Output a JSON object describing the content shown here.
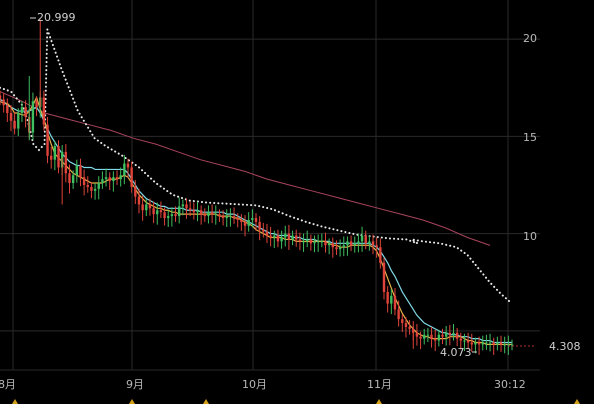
{
  "chart_data": {
    "type": "candlestick",
    "title": "",
    "xlabel": "",
    "ylabel": "",
    "ylim": [
      3.5,
      21.6
    ],
    "grid": true,
    "y_ticks": [
      10,
      15,
      20
    ],
    "y_tick_labels": [
      "10",
      "15",
      "20"
    ],
    "x_tick_labels": [
      "8月",
      "9月",
      "10月",
      "11月",
      "30:12"
    ],
    "annotations": {
      "high": "20.999",
      "low": "4.073",
      "last_price": "4.308"
    },
    "x_days": [
      0,
      1,
      2,
      3,
      4,
      5,
      6,
      7,
      8,
      9,
      10,
      11,
      12,
      13,
      14,
      15,
      16,
      17,
      18,
      19,
      20,
      21,
      22,
      23,
      24,
      25,
      26,
      27,
      28,
      29,
      30,
      31,
      32,
      33,
      34,
      35,
      36,
      37,
      38,
      39,
      40,
      41,
      42,
      43,
      44,
      45,
      46,
      47,
      48,
      49,
      50,
      51,
      52,
      53,
      54,
      55,
      56,
      57,
      58,
      59,
      60,
      61,
      62,
      63,
      64,
      65,
      66,
      67,
      68,
      69,
      70,
      71,
      72,
      73,
      74,
      75,
      76,
      77,
      78,
      79,
      80,
      81,
      82,
      83,
      84,
      85,
      86,
      87,
      88,
      89,
      90,
      91,
      92,
      93,
      94,
      95,
      96,
      97,
      98,
      99,
      100,
      101,
      102,
      103,
      104,
      105,
      106,
      107,
      108,
      109,
      110,
      111,
      112,
      113,
      114,
      115,
      116,
      117,
      118,
      119,
      120,
      121,
      122,
      123,
      124,
      125,
      126,
      127,
      128,
      129,
      130,
      131,
      132,
      133,
      134,
      135,
      136,
      137,
      138,
      139,
      140
    ],
    "close": [
      16.9,
      16.6,
      16.2,
      15.8,
      15.4,
      16.2,
      16.5,
      16.0,
      15.2,
      16.8,
      16.5,
      17.0,
      15.6,
      14.0,
      13.8,
      14.5,
      13.4,
      14.2,
      13.1,
      12.6,
      13.0,
      13.5,
      12.9,
      12.5,
      12.4,
      12.2,
      12.3,
      12.6,
      12.8,
      12.9,
      12.7,
      12.9,
      12.8,
      13.0,
      13.6,
      13.4,
      12.4,
      11.9,
      11.5,
      11.2,
      11.5,
      11.3,
      11.0,
      11.2,
      11.1,
      10.8,
      10.9,
      11.0,
      10.9,
      11.4,
      11.5,
      11.3,
      11.2,
      11.1,
      11.2,
      11.0,
      10.9,
      11.1,
      11.0,
      11.0,
      10.9,
      10.8,
      10.9,
      10.9,
      10.8,
      10.7,
      10.6,
      10.4,
      10.7,
      10.8,
      10.6,
      10.2,
      10.1,
      9.9,
      9.8,
      9.9,
      9.6,
      9.8,
      10.0,
      9.7,
      9.9,
      9.7,
      9.6,
      9.6,
      9.7,
      9.5,
      9.6,
      9.6,
      9.6,
      9.4,
      9.5,
      9.3,
      9.2,
      9.3,
      9.4,
      9.6,
      9.4,
      9.5,
      9.6,
      9.9,
      9.5,
      9.6,
      9.4,
      9.3,
      8.5,
      7.0,
      6.4,
      6.8,
      6.1,
      5.6,
      5.4,
      5.2,
      5.1,
      4.9,
      4.7,
      4.6,
      4.8,
      4.8,
      4.6,
      4.5,
      4.8,
      4.7,
      4.9,
      4.8,
      4.9,
      4.6,
      4.5,
      4.5,
      4.4,
      4.3,
      4.4,
      4.3,
      4.4,
      4.4,
      4.4,
      4.3,
      4.4,
      4.3,
      4.3,
      4.3,
      4.3
    ],
    "ma_short": [
      16.8,
      16.7,
      16.7,
      16.5,
      16.2,
      16.2,
      16.1,
      16.1,
      16.3,
      16.6,
      17.0,
      16.4,
      15.9,
      15.2,
      14.6,
      14.1,
      13.9,
      13.7,
      13.5,
      13.3,
      13.1,
      13.0,
      12.9,
      12.8,
      12.7,
      12.6,
      12.6,
      12.6,
      12.6,
      12.7,
      12.8,
      12.8,
      12.8,
      12.9,
      13.0,
      12.9,
      12.6,
      12.3,
      12.0,
      11.8,
      11.6,
      11.5,
      11.4,
      11.3,
      11.3,
      11.2,
      11.2,
      11.1,
      11.1,
      11.0,
      11.0,
      11.0,
      11.0,
      11.0,
      11.0,
      11.0,
      11.0,
      11.0,
      11.0,
      11.0,
      10.9,
      10.9,
      10.9,
      10.9,
      10.8,
      10.8,
      10.7,
      10.6,
      10.5,
      10.4,
      10.2,
      10.1,
      10.0,
      9.9,
      9.8,
      9.8,
      9.8,
      9.8,
      9.7,
      9.7,
      9.7,
      9.6,
      9.6,
      9.6,
      9.6,
      9.6,
      9.6,
      9.6,
      9.6,
      9.6,
      9.5,
      9.4,
      9.4,
      9.3,
      9.3,
      9.3,
      9.4,
      9.4,
      9.4,
      9.4,
      9.4,
      9.4,
      9.3,
      9.1,
      8.7,
      8.2,
      7.7,
      7.2,
      6.7,
      6.3,
      5.9,
      5.6,
      5.3,
      5.1,
      4.9,
      4.8,
      4.7,
      4.7,
      4.6,
      4.6,
      4.6,
      4.6,
      4.6,
      4.7,
      4.7,
      4.7,
      4.7,
      4.6,
      4.5,
      4.5,
      4.4,
      4.4,
      4.4,
      4.3,
      4.3,
      4.3,
      4.3,
      4.3,
      4.3,
      4.3,
      4.3
    ],
    "ma_mid": [
      16.9,
      16.8,
      16.6,
      16.5,
      16.4,
      16.3,
      16.3,
      16.3,
      16.3,
      16.4,
      16.5,
      16.2,
      15.8,
      15.4,
      15.0,
      14.7,
      14.4,
      14.1,
      13.9,
      13.7,
      13.6,
      13.5,
      13.5,
      13.4,
      13.4,
      13.4,
      13.3,
      13.3,
      13.3,
      13.3,
      13.3,
      13.3,
      13.3,
      13.3,
      13.3,
      13.1,
      12.8,
      12.5,
      12.2,
      12.0,
      11.8,
      11.7,
      11.6,
      11.5,
      11.4,
      11.4,
      11.3,
      11.3,
      11.3,
      11.3,
      11.3,
      11.2,
      11.2,
      11.2,
      11.2,
      11.1,
      11.1,
      11.1,
      11.1,
      11.1,
      11.1,
      11.1,
      11.0,
      11.0,
      11.0,
      10.9,
      10.8,
      10.7,
      10.6,
      10.5,
      10.4,
      10.3,
      10.2,
      10.1,
      10.0,
      10.0,
      9.9,
      9.9,
      9.9,
      9.9,
      9.8,
      9.8,
      9.8,
      9.7,
      9.7,
      9.7,
      9.7,
      9.6,
      9.6,
      9.6,
      9.6,
      9.5,
      9.5,
      9.5,
      9.5,
      9.5,
      9.5,
      9.5,
      9.5,
      9.5,
      9.5,
      9.5,
      9.4,
      9.3,
      9.1,
      8.8,
      8.5,
      8.1,
      7.8,
      7.4,
      7.0,
      6.7,
      6.4,
      6.1,
      5.8,
      5.6,
      5.4,
      5.3,
      5.2,
      5.1,
      5.0,
      4.9,
      4.9,
      4.8,
      4.8,
      4.8,
      4.7,
      4.7,
      4.7,
      4.6,
      4.6,
      4.6,
      4.5,
      4.5,
      4.5,
      4.4,
      4.4,
      4.4,
      4.4,
      4.4,
      4.4
    ],
    "ma_dotted": [
      [
        0,
        17.5
      ],
      [
        4,
        17.3
      ],
      [
        8,
        16.6
      ],
      [
        10,
        15.8
      ],
      [
        12,
        14.6
      ],
      [
        14,
        14.3
      ],
      [
        16,
        14.6
      ],
      [
        17,
        20.5
      ],
      [
        22,
        18.5
      ],
      [
        28,
        16.3
      ],
      [
        34,
        14.9
      ],
      [
        38,
        14.5
      ],
      [
        44,
        14.0
      ],
      [
        50,
        13.4
      ],
      [
        56,
        12.6
      ],
      [
        62,
        12.0
      ],
      [
        68,
        11.7
      ],
      [
        74,
        11.6
      ],
      [
        80,
        11.55
      ],
      [
        86,
        11.5
      ],
      [
        92,
        11.45
      ],
      [
        98,
        11.25
      ],
      [
        104,
        10.9
      ],
      [
        110,
        10.6
      ],
      [
        116,
        10.35
      ],
      [
        122,
        10.15
      ],
      [
        128,
        9.95
      ],
      [
        134,
        9.85
      ],
      [
        140,
        9.75
      ],
      [
        146,
        9.7
      ],
      [
        150,
        9.5
      ],
      [
        148,
        9.7
      ],
      [
        152,
        9.6
      ],
      [
        158,
        9.5
      ],
      [
        164,
        9.3
      ],
      [
        168,
        8.9
      ],
      [
        172,
        8.2
      ],
      [
        176,
        7.5
      ],
      [
        180,
        6.9
      ],
      [
        184,
        6.4
      ]
    ],
    "ma_long": [
      [
        0,
        17.3
      ],
      [
        8,
        16.8
      ],
      [
        16,
        16.2
      ],
      [
        24,
        15.9
      ],
      [
        32,
        15.6
      ],
      [
        40,
        15.3
      ],
      [
        48,
        14.9
      ],
      [
        56,
        14.6
      ],
      [
        64,
        14.2
      ],
      [
        72,
        13.8
      ],
      [
        80,
        13.5
      ],
      [
        88,
        13.2
      ],
      [
        96,
        12.8
      ],
      [
        104,
        12.5
      ],
      [
        112,
        12.2
      ],
      [
        120,
        11.9
      ],
      [
        128,
        11.6
      ],
      [
        136,
        11.3
      ],
      [
        144,
        11.0
      ],
      [
        152,
        10.7
      ],
      [
        160,
        10.3
      ],
      [
        168,
        9.8
      ],
      [
        176,
        9.4
      ]
    ]
  }
}
